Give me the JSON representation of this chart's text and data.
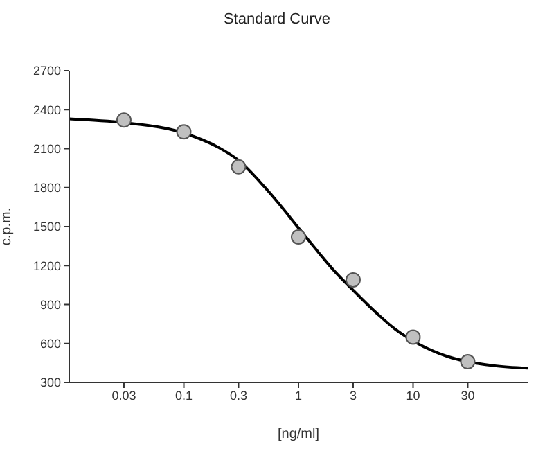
{
  "chart_data": {
    "type": "scatter",
    "title": "Standard Curve",
    "xlabel": "[ng/ml]",
    "ylabel": "c.p.m.",
    "log": "x",
    "xlim": [
      0.01,
      100
    ],
    "xticks": [
      0.03,
      0.1,
      0.3,
      1,
      3,
      10,
      30
    ],
    "ylim": [
      300,
      2700
    ],
    "yticks": [
      300,
      600,
      900,
      1200,
      1500,
      1800,
      2100,
      2400,
      2700
    ],
    "grid": false,
    "legend": false,
    "series": [
      {
        "type": "scatter",
        "color": "#c0c0c0",
        "marker": "circle",
        "x": [
          0.03,
          0.1,
          0.3,
          1,
          3,
          10,
          30
        ],
        "values": [
          2320,
          2230,
          1960,
          1420,
          1090,
          650,
          460
        ]
      },
      {
        "type": "line",
        "color": "#000000",
        "marker": "none",
        "line_style": "solid",
        "x": [
          0.01,
          0.03,
          0.1,
          0.2,
          0.3,
          0.5,
          0.7,
          1,
          1.5,
          2,
          3,
          5,
          7,
          10,
          20,
          30,
          50,
          100
        ],
        "values": [
          2330,
          2300,
          2220,
          2110,
          2010,
          1810,
          1660,
          1490,
          1300,
          1170,
          1010,
          820,
          710,
          620,
          500,
          460,
          430,
          410
        ]
      }
    ]
  }
}
